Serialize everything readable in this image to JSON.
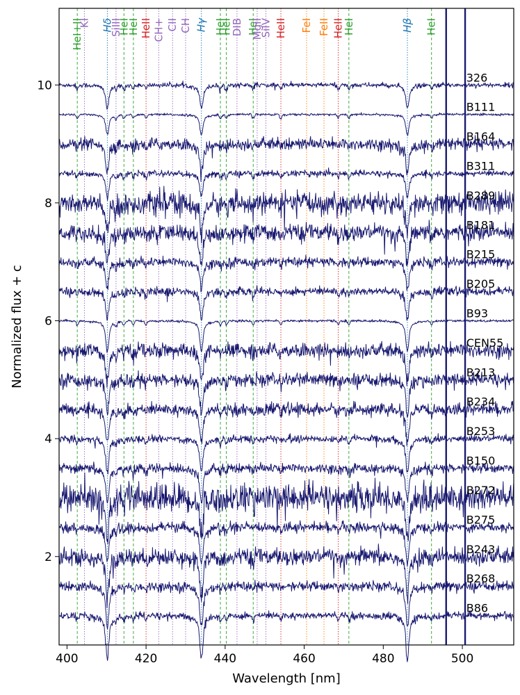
{
  "chart_data": {
    "type": "line",
    "xlabel": "Wavelength [nm]",
    "ylabel": "Normalized flux + c",
    "xlim": [
      398,
      513
    ],
    "ylim": [
      0.5,
      11.3
    ],
    "xticks": [
      400,
      420,
      440,
      460,
      480,
      500
    ],
    "yticks": [
      2,
      4,
      6,
      8,
      10
    ],
    "grid": false,
    "line_color": "#191970",
    "series": [
      {
        "name": "326",
        "offset": 10.0,
        "noise": 0.02,
        "depth": 0.35
      },
      {
        "name": "B111",
        "offset": 9.5,
        "noise": 0.01,
        "depth": 0.3
      },
      {
        "name": "B164",
        "offset": 9.0,
        "noise": 0.05,
        "depth": 0.45
      },
      {
        "name": "B311",
        "offset": 8.5,
        "noise": 0.025,
        "depth": 0.35
      },
      {
        "name": "B289",
        "offset": 8.0,
        "noise": 0.09,
        "depth": 0.45
      },
      {
        "name": "B181",
        "offset": 7.5,
        "noise": 0.07,
        "depth": 0.45
      },
      {
        "name": "B215",
        "offset": 7.0,
        "noise": 0.04,
        "depth": 0.4
      },
      {
        "name": "B205",
        "offset": 6.5,
        "noise": 0.035,
        "depth": 0.4
      },
      {
        "name": "B93",
        "offset": 6.0,
        "noise": 0.01,
        "depth": 0.45
      },
      {
        "name": "CEN55",
        "offset": 5.5,
        "noise": 0.06,
        "depth": 0.45
      },
      {
        "name": "B213",
        "offset": 5.0,
        "noise": 0.055,
        "depth": 0.5
      },
      {
        "name": "B234",
        "offset": 4.5,
        "noise": 0.05,
        "depth": 0.5
      },
      {
        "name": "B253",
        "offset": 4.0,
        "noise": 0.03,
        "depth": 0.5
      },
      {
        "name": "B150",
        "offset": 3.5,
        "noise": 0.04,
        "depth": 0.5
      },
      {
        "name": "B272",
        "offset": 3.0,
        "noise": 0.12,
        "depth": 0.55
      },
      {
        "name": "B275",
        "offset": 2.5,
        "noise": 0.04,
        "depth": 0.55
      },
      {
        "name": "B243",
        "offset": 2.0,
        "noise": 0.07,
        "depth": 0.6
      },
      {
        "name": "B268",
        "offset": 1.5,
        "noise": 0.04,
        "depth": 0.6
      },
      {
        "name": "B86",
        "offset": 1.0,
        "noise": 0.03,
        "depth": 0.65
      }
    ],
    "spectral_lines": [
      {
        "label": "HeI+II",
        "wavelength": 402.6,
        "color": "#2ca02c",
        "style": "dashed",
        "italic": false
      },
      {
        "label": "KI",
        "wavelength": 404.4,
        "color": "#9467bd",
        "style": "dotted",
        "italic": false
      },
      {
        "label": "Hδ",
        "wavelength": 410.2,
        "color": "#1f77b4",
        "style": "dotted",
        "italic": true
      },
      {
        "label": "SiIII",
        "wavelength": 412.4,
        "color": "#9467bd",
        "style": "dotted",
        "italic": false
      },
      {
        "label": "HeI",
        "wavelength": 414.4,
        "color": "#2ca02c",
        "style": "dashed",
        "italic": false
      },
      {
        "label": "HeI",
        "wavelength": 416.8,
        "color": "#2ca02c",
        "style": "dashed",
        "italic": false
      },
      {
        "label": "HeII",
        "wavelength": 420.0,
        "color": "#d62728",
        "style": "dotted",
        "italic": false
      },
      {
        "label": "CH+",
        "wavelength": 423.2,
        "color": "#9467bd",
        "style": "dotted",
        "italic": false
      },
      {
        "label": "CII",
        "wavelength": 426.7,
        "color": "#9467bd",
        "style": "dotted",
        "italic": false
      },
      {
        "label": "CH",
        "wavelength": 430.0,
        "color": "#9467bd",
        "style": "dotted",
        "italic": false
      },
      {
        "label": "Hγ",
        "wavelength": 434.0,
        "color": "#1f77b4",
        "style": "dotted",
        "italic": true
      },
      {
        "label": "HeI",
        "wavelength": 438.8,
        "color": "#2ca02c",
        "style": "dashed",
        "italic": false
      },
      {
        "label": "HeI",
        "wavelength": 440.3,
        "color": "#2ca02c",
        "style": "dashed",
        "italic": false
      },
      {
        "label": "DIB",
        "wavelength": 443.0,
        "color": "#9467bd",
        "style": "dotted",
        "italic": false
      },
      {
        "label": "HeI",
        "wavelength": 447.1,
        "color": "#2ca02c",
        "style": "dashed",
        "italic": false
      },
      {
        "label": "MgII",
        "wavelength": 448.1,
        "color": "#9467bd",
        "style": "dotted",
        "italic": false
      },
      {
        "label": "SiIV",
        "wavelength": 450.3,
        "color": "#9467bd",
        "style": "dotted",
        "italic": false
      },
      {
        "label": "HeII",
        "wavelength": 454.1,
        "color": "#d62728",
        "style": "dotted",
        "italic": false
      },
      {
        "label": "FeI",
        "wavelength": 460.6,
        "color": "#ff7f0e",
        "style": "dotted",
        "italic": false
      },
      {
        "label": "FeII",
        "wavelength": 465.0,
        "color": "#ff7f0e",
        "style": "dotted",
        "italic": false
      },
      {
        "label": "HeII",
        "wavelength": 468.6,
        "color": "#d62728",
        "style": "dotted",
        "italic": false
      },
      {
        "label": "HeI",
        "wavelength": 471.3,
        "color": "#2ca02c",
        "style": "dashed",
        "italic": false
      },
      {
        "label": "Hβ",
        "wavelength": 486.1,
        "color": "#1f77b4",
        "style": "dotted",
        "italic": true
      },
      {
        "label": "HeI",
        "wavelength": 492.2,
        "color": "#2ca02c",
        "style": "dashed",
        "italic": false
      }
    ],
    "features": [
      {
        "wavelength": 410.2,
        "kind": "balmer"
      },
      {
        "wavelength": 434.0,
        "kind": "balmer"
      },
      {
        "wavelength": 486.1,
        "kind": "balmer"
      },
      {
        "wavelength": 402.6,
        "kind": "metal"
      },
      {
        "wavelength": 412.4,
        "kind": "metal"
      },
      {
        "wavelength": 414.4,
        "kind": "metal"
      },
      {
        "wavelength": 416.8,
        "kind": "metal"
      },
      {
        "wavelength": 420.0,
        "kind": "metal"
      },
      {
        "wavelength": 438.8,
        "kind": "metal"
      },
      {
        "wavelength": 440.3,
        "kind": "metal"
      },
      {
        "wavelength": 447.1,
        "kind": "metal"
      },
      {
        "wavelength": 454.1,
        "kind": "metal"
      },
      {
        "wavelength": 468.6,
        "kind": "metal"
      },
      {
        "wavelength": 471.3,
        "kind": "metal"
      },
      {
        "wavelength": 492.2,
        "kind": "metal"
      },
      {
        "wavelength": 495.9,
        "kind": "artifact"
      },
      {
        "wavelength": 500.7,
        "kind": "artifact"
      }
    ]
  }
}
